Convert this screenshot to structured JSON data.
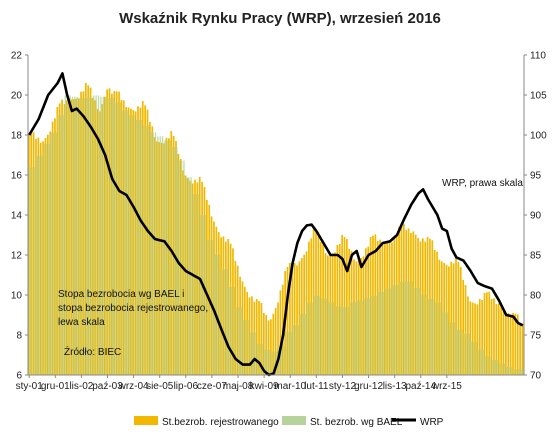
{
  "chart_data": {
    "type": "bar",
    "title": "Wskaźnik Rynku Pracy (WRP), wrzesień 2016",
    "x_tick_labels": [
      "sty-01",
      "gru-01",
      "lis-02",
      "paź-03",
      "wrz-04",
      "sie-05",
      "lip-06",
      "cze-07",
      "maj-08",
      "kwi-09",
      "mar-10",
      "lut-11",
      "sty-12",
      "gru-12",
      "lis-13",
      "paź-14",
      "wrz-15"
    ],
    "start_month": "sty-01",
    "end_month": "wrz-16",
    "left_axis": {
      "ylim": [
        6,
        22
      ],
      "ticks": [
        "6",
        "8",
        "10",
        "12",
        "14",
        "16",
        "18",
        "20",
        "22"
      ]
    },
    "right_axis": {
      "ylim": [
        70,
        110
      ],
      "ticks": [
        "70",
        "75",
        "80",
        "85",
        "90",
        "95",
        "100",
        "105",
        "110"
      ]
    },
    "series": [
      {
        "name": "St.bezrob. rejestrowanego",
        "type": "bar",
        "axis": "left",
        "color": "#f2b800",
        "knots": [
          [
            0,
            17.6
          ],
          [
            6,
            18.0
          ],
          [
            12,
            19.0
          ],
          [
            18,
            20.1
          ],
          [
            24,
            20.2
          ],
          [
            30,
            19.5
          ],
          [
            33,
            20.6
          ],
          [
            36,
            19.8
          ],
          [
            42,
            19.7
          ],
          [
            48,
            19.3
          ],
          [
            54,
            18.0
          ],
          [
            60,
            17.8
          ],
          [
            66,
            16.3
          ],
          [
            72,
            15.5
          ],
          [
            78,
            14.0
          ],
          [
            84,
            12.4
          ],
          [
            90,
            11.0
          ],
          [
            96,
            9.4
          ],
          [
            100,
            9.0
          ],
          [
            102,
            9.1
          ],
          [
            108,
            10.8
          ],
          [
            114,
            12.0
          ],
          [
            120,
            13.0
          ],
          [
            126,
            12.3
          ],
          [
            132,
            12.6
          ],
          [
            138,
            12.0
          ],
          [
            144,
            12.5
          ],
          [
            150,
            12.9
          ],
          [
            156,
            13.0
          ],
          [
            162,
            13.5
          ],
          [
            168,
            12.5
          ],
          [
            174,
            12.0
          ],
          [
            180,
            11.5
          ],
          [
            186,
            10.0
          ],
          [
            192,
            9.7
          ],
          [
            198,
            9.9
          ],
          [
            204,
            8.7
          ],
          [
            210,
            8.5
          ]
        ],
        "seasonal_amplitude": 0.4
      },
      {
        "name": "St. bezrob. wg BAEL",
        "type": "bar",
        "axis": "left",
        "color": "#b5d39a",
        "knots": [
          [
            0,
            16.2
          ],
          [
            12,
            18.5
          ],
          [
            15,
            20.0
          ],
          [
            24,
            19.8
          ],
          [
            27,
            20.0
          ],
          [
            36,
            19.8
          ],
          [
            39,
            19.3
          ],
          [
            48,
            18.6
          ],
          [
            51,
            18.2
          ],
          [
            60,
            17.6
          ],
          [
            63,
            17.0
          ],
          [
            72,
            14.5
          ],
          [
            75,
            13.0
          ],
          [
            84,
            10.8
          ],
          [
            87,
            9.6
          ],
          [
            96,
            7.7
          ],
          [
            99,
            7.3
          ],
          [
            105,
            7.1
          ],
          [
            108,
            8.1
          ],
          [
            111,
            8.3
          ],
          [
            120,
            10.0
          ],
          [
            123,
            9.9
          ],
          [
            132,
            9.3
          ],
          [
            135,
            9.6
          ],
          [
            144,
            9.9
          ],
          [
            147,
            10.1
          ],
          [
            156,
            10.6
          ],
          [
            159,
            10.8
          ],
          [
            168,
            9.8
          ],
          [
            171,
            9.8
          ],
          [
            180,
            8.3
          ],
          [
            183,
            8.2
          ],
          [
            192,
            7.0
          ],
          [
            195,
            6.8
          ],
          [
            204,
            6.3
          ],
          [
            208,
            6.3
          ]
        ],
        "quarterly": true
      },
      {
        "name": "WRP",
        "type": "line",
        "axis": "right",
        "color": "#000000",
        "knots": [
          [
            0,
            100
          ],
          [
            4,
            102
          ],
          [
            8,
            105
          ],
          [
            12,
            106.5
          ],
          [
            14,
            107.7
          ],
          [
            16,
            105
          ],
          [
            18,
            103
          ],
          [
            20,
            103.3
          ],
          [
            23,
            102.3
          ],
          [
            26,
            101
          ],
          [
            29,
            99.5
          ],
          [
            32,
            97.5
          ],
          [
            35,
            94.5
          ],
          [
            38,
            93
          ],
          [
            41,
            92.5
          ],
          [
            44,
            91
          ],
          [
            47,
            89.3
          ],
          [
            50,
            88
          ],
          [
            53,
            87
          ],
          [
            57,
            86.7
          ],
          [
            60,
            85.5
          ],
          [
            63,
            84
          ],
          [
            66,
            83
          ],
          [
            69,
            82.5
          ],
          [
            72,
            82
          ],
          [
            75,
            80
          ],
          [
            78,
            78
          ],
          [
            81,
            75.7
          ],
          [
            84,
            73.5
          ],
          [
            87,
            72
          ],
          [
            90,
            71.3
          ],
          [
            93,
            71.3
          ],
          [
            95,
            72
          ],
          [
            97,
            71.5
          ],
          [
            99,
            70.5
          ],
          [
            101,
            70
          ],
          [
            103,
            70.2
          ],
          [
            105,
            72
          ],
          [
            107,
            75
          ],
          [
            109,
            80
          ],
          [
            111,
            84
          ],
          [
            113,
            86.5
          ],
          [
            115,
            88
          ],
          [
            117,
            88.7
          ],
          [
            119,
            88.8
          ],
          [
            121,
            88
          ],
          [
            124,
            86.5
          ],
          [
            127,
            85
          ],
          [
            130,
            85
          ],
          [
            132,
            84.5
          ],
          [
            134,
            83
          ],
          [
            136,
            85
          ],
          [
            138,
            85.5
          ],
          [
            140,
            83.5
          ],
          [
            143,
            85
          ],
          [
            146,
            85.5
          ],
          [
            149,
            86.5
          ],
          [
            152,
            86.7
          ],
          [
            155,
            87.5
          ],
          [
            158,
            89.5
          ],
          [
            161,
            91.3
          ],
          [
            164,
            92.7
          ],
          [
            166,
            93.2
          ],
          [
            168,
            92
          ],
          [
            170,
            91
          ],
          [
            172,
            90
          ],
          [
            174,
            88.3
          ],
          [
            176,
            88
          ],
          [
            178,
            85.8
          ],
          [
            180,
            84.7
          ],
          [
            183,
            84.3
          ],
          [
            186,
            83
          ],
          [
            189,
            81.5
          ],
          [
            192,
            81.1
          ],
          [
            195,
            80.8
          ],
          [
            198,
            79.3
          ],
          [
            201,
            77.5
          ],
          [
            204,
            77.3
          ],
          [
            206,
            76.5
          ],
          [
            208,
            76.2
          ]
        ]
      }
    ],
    "annotations": {
      "wrp_label": "WRP, prawa skala",
      "unemp_label_1": "Stopa bezrobocia wg BAEL i",
      "unemp_label_2": "stopa bezrobocia rejestrowanego,",
      "unemp_label_3": "lewa skala",
      "source": "Źródło: BIEC"
    },
    "legend": {
      "position": "bottom",
      "items": [
        {
          "label": "St.bezrob. rejestrowanego",
          "color": "#f2b800",
          "kind": "box"
        },
        {
          "label": "St. bezrob. wg BAEL",
          "color": "#b5d39a",
          "kind": "box"
        },
        {
          "label": "WRP",
          "color": "#000000",
          "kind": "line"
        }
      ]
    },
    "grid": false
  }
}
